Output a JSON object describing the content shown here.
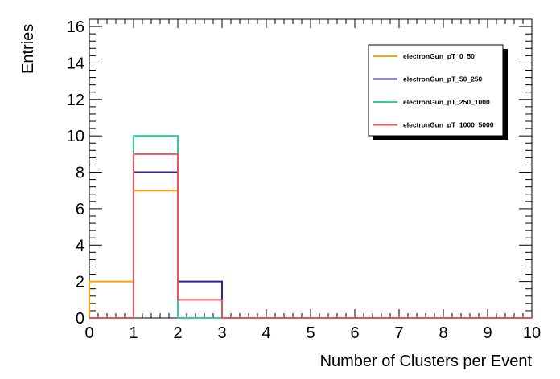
{
  "chart_data": {
    "type": "histogram",
    "xlabel": "Number of Clusters per Event",
    "ylabel": "Entries",
    "xlim": [
      0,
      10
    ],
    "ylim": [
      0,
      16.4
    ],
    "bin_edges": [
      0,
      1,
      2,
      3,
      4,
      5,
      6,
      7,
      8,
      9,
      10
    ],
    "x_ticks": [
      "0",
      "1",
      "2",
      "3",
      "4",
      "5",
      "6",
      "7",
      "8",
      "9",
      "10"
    ],
    "y_ticks": [
      "0",
      "2",
      "4",
      "6",
      "8",
      "10",
      "12",
      "14",
      "16"
    ],
    "legend_position": "top-right",
    "grid": false,
    "series": [
      {
        "name": "electronGun_pT_0_50",
        "color": "#ffa500",
        "values": [
          2,
          7,
          0,
          0,
          0,
          0,
          0,
          0,
          0,
          0
        ]
      },
      {
        "name": "electronGun_pT_50_250",
        "color": "#2b2590",
        "values": [
          0,
          8,
          2,
          0,
          0,
          0,
          0,
          0,
          0,
          0
        ]
      },
      {
        "name": "electronGun_pT_250_1000",
        "color": "#2fcca0",
        "values": [
          0,
          10,
          0,
          0,
          0,
          0,
          0,
          0,
          0,
          0
        ]
      },
      {
        "name": "electronGun_pT_1000_5000",
        "color": "#f0505a",
        "values": [
          0,
          9,
          1,
          0,
          0,
          0,
          0,
          0,
          0,
          0
        ]
      }
    ]
  }
}
